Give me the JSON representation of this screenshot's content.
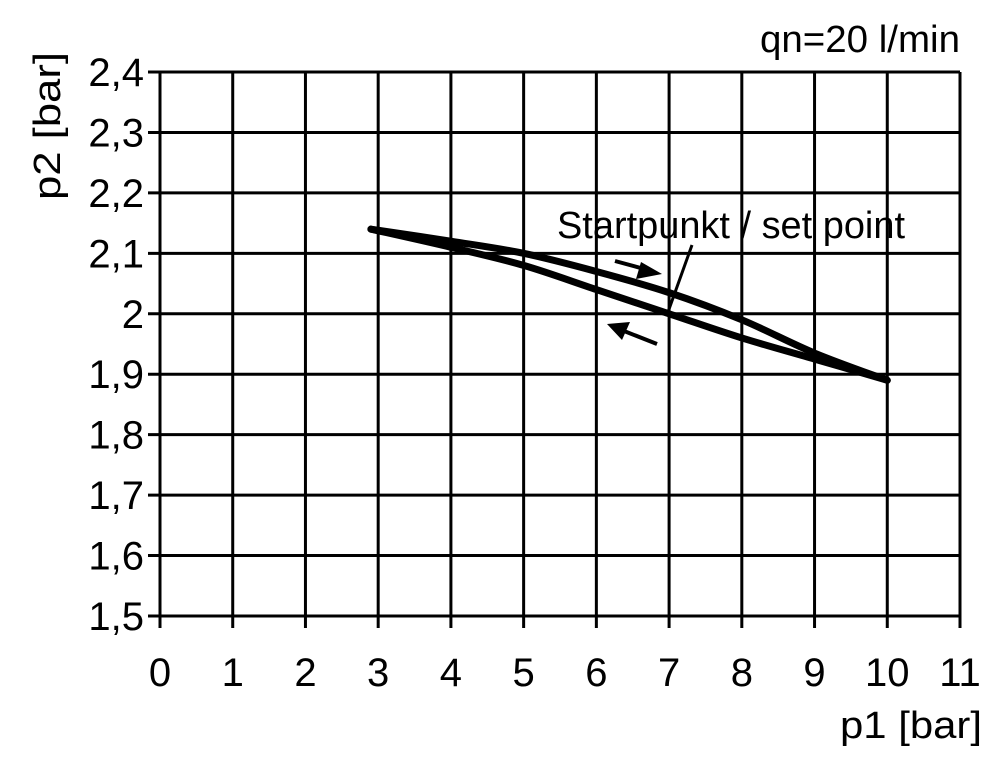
{
  "chart_data": {
    "type": "line",
    "title": "qn=20 l/min",
    "xlabel": "p1 [bar]",
    "ylabel": "p2 [bar]",
    "xlim": [
      0,
      11
    ],
    "ylim": [
      1.5,
      2.4
    ],
    "grid": true,
    "xticks": [
      "0",
      "1",
      "2",
      "3",
      "4",
      "5",
      "6",
      "7",
      "8",
      "9",
      "10",
      "11"
    ],
    "yticks": [
      "1,5",
      "1,6",
      "1,7",
      "1,8",
      "1,9",
      "2",
      "2,1",
      "2,2",
      "2,3",
      "2,4"
    ],
    "series": [
      {
        "direction": "increasing p1",
        "x": [
          2.9,
          4,
          5,
          6,
          7,
          8,
          9,
          10
        ],
        "y": [
          2.14,
          2.12,
          2.1,
          2.07,
          2.035,
          1.99,
          1.935,
          1.89
        ]
      },
      {
        "direction": "decreasing p1",
        "x": [
          10,
          9,
          8,
          7,
          6,
          5,
          4,
          2.9
        ],
        "y": [
          1.89,
          1.925,
          1.96,
          2.0,
          2.04,
          2.08,
          2.11,
          2.14
        ]
      }
    ],
    "annotation": {
      "text": "Startpunkt / set point",
      "x": 7,
      "y": 2.0
    },
    "line_color": "#000000"
  }
}
